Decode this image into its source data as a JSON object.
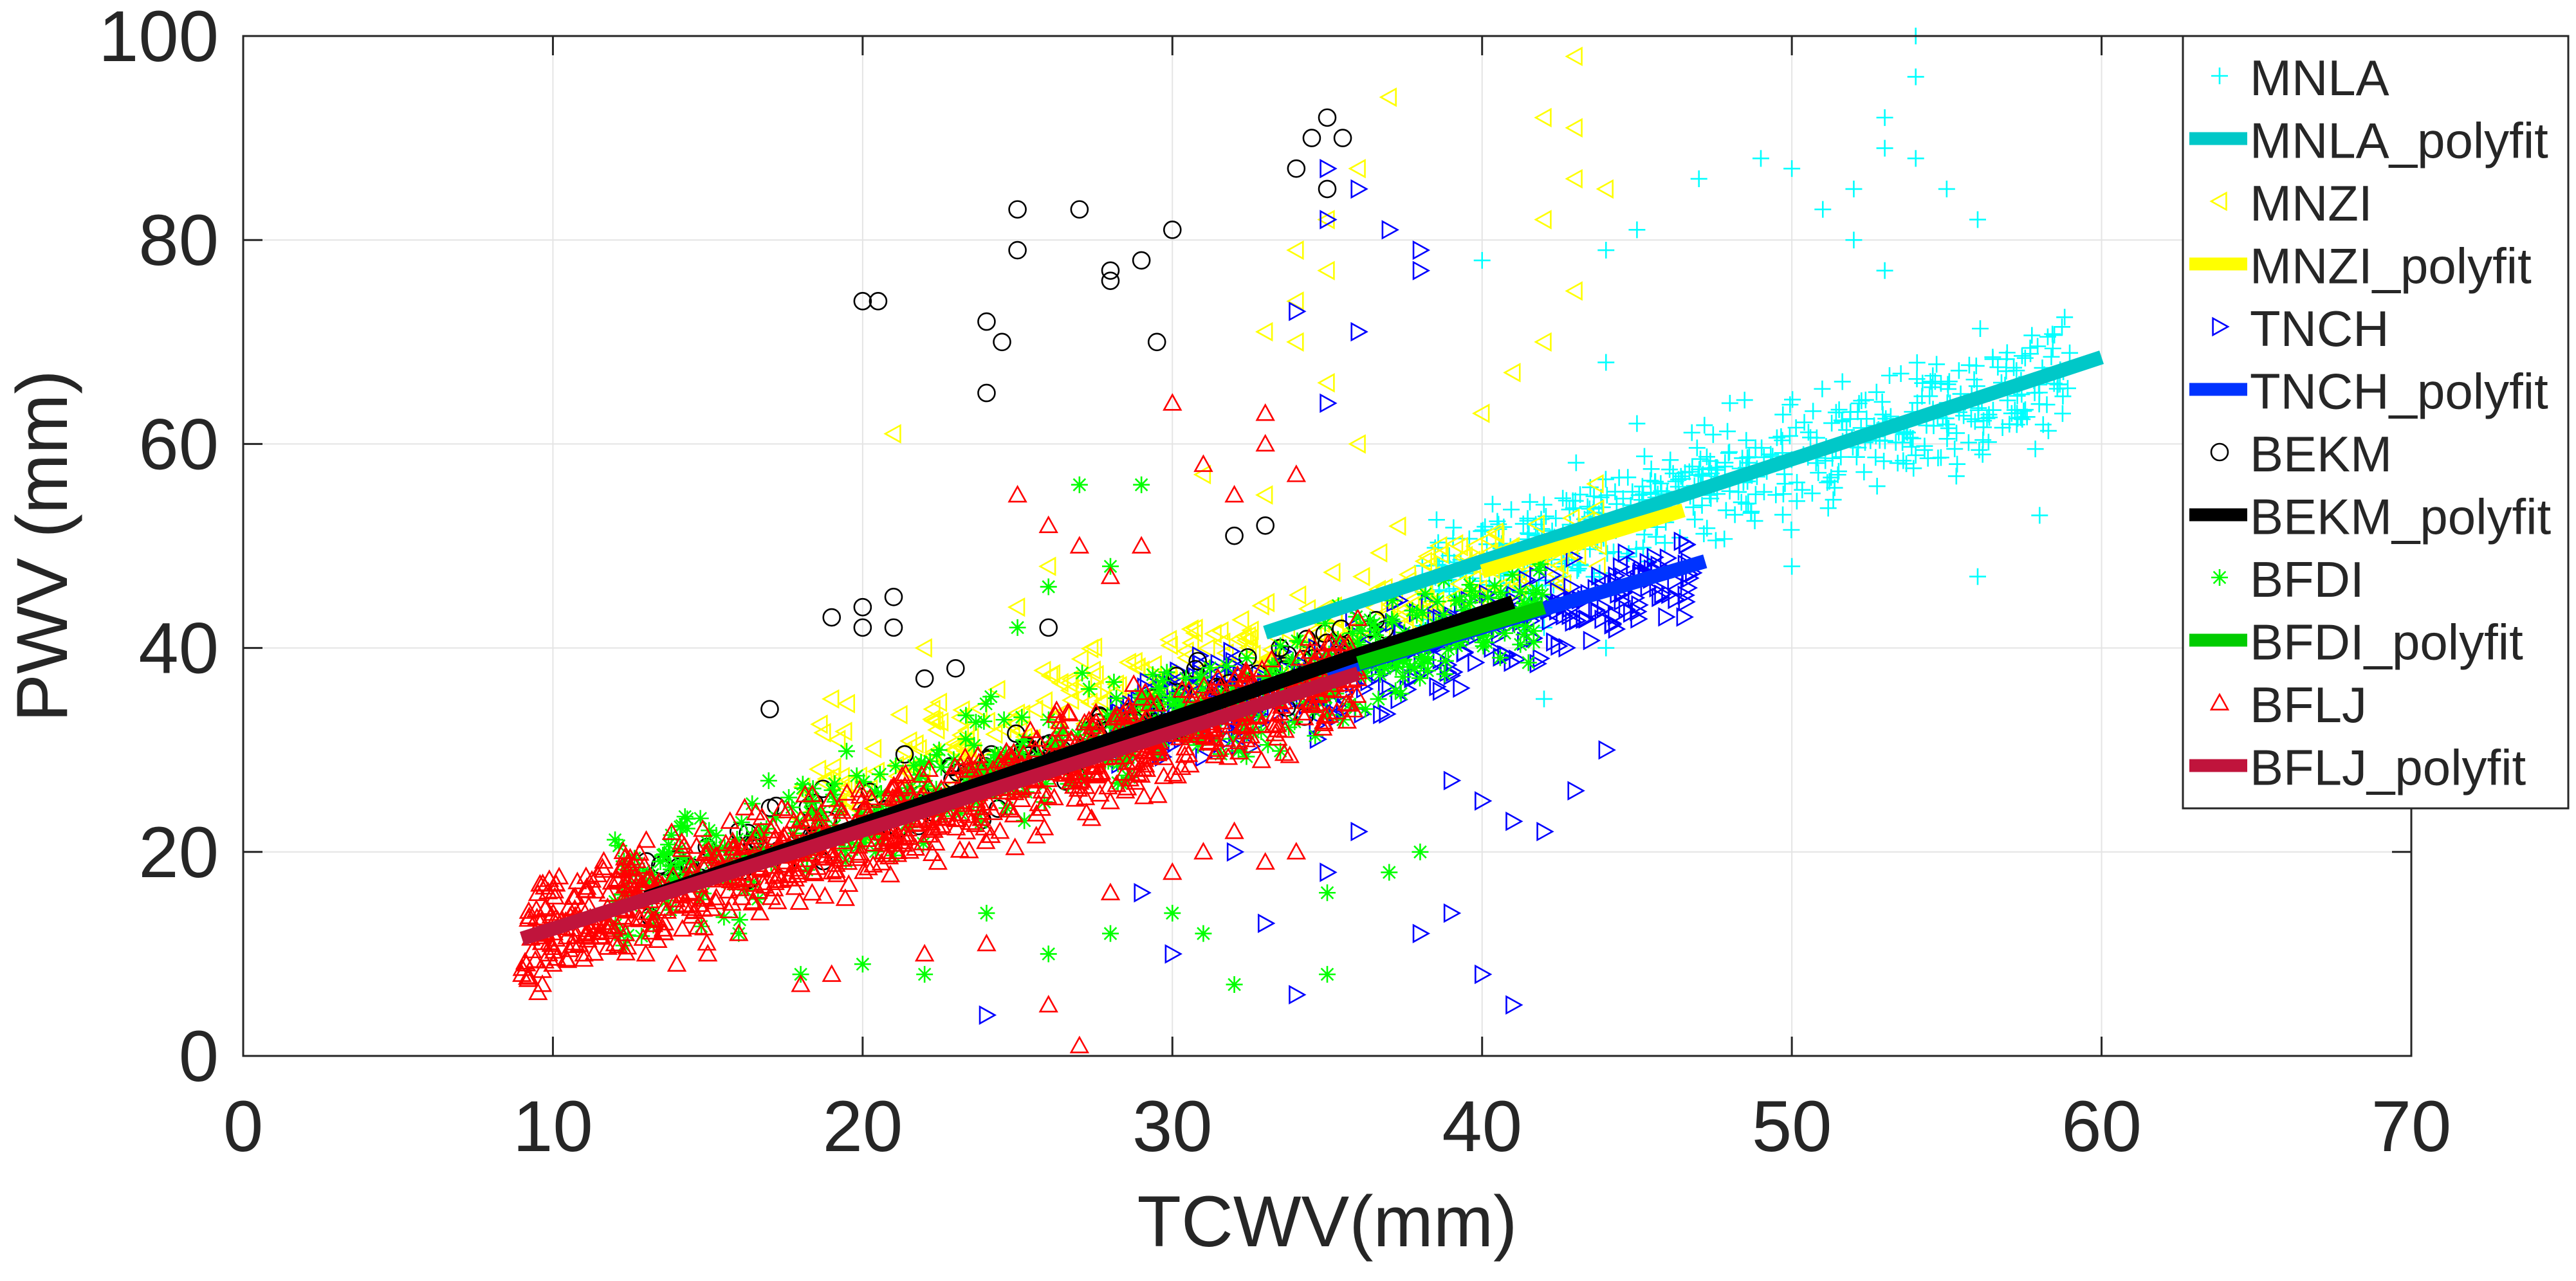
{
  "chart_data": {
    "type": "scatter",
    "title": "",
    "xlabel": "TCWV(mm)",
    "ylabel": "PWV (mm)",
    "xlim": [
      0,
      70
    ],
    "ylim": [
      0,
      100
    ],
    "xticks": [
      0,
      10,
      20,
      30,
      40,
      50,
      60,
      70
    ],
    "yticks": [
      0,
      20,
      40,
      60,
      80,
      100
    ],
    "grid": true,
    "legend_position": "top-right",
    "series": [
      {
        "name": "MNLA",
        "marker": "+",
        "color": "#00FFFF",
        "cluster": {
          "x_range": [
            38,
            59
          ],
          "slope": 0.99,
          "intercept": 8.8,
          "spread": 4.0,
          "count": 520
        },
        "points": [
          [
            40,
            78
          ],
          [
            44,
            79
          ],
          [
            44,
            68
          ],
          [
            45,
            81
          ],
          [
            47,
            86
          ],
          [
            49,
            88
          ],
          [
            50,
            87
          ],
          [
            51,
            83
          ],
          [
            52,
            85
          ],
          [
            52,
            80
          ],
          [
            53,
            92
          ],
          [
            53,
            89
          ],
          [
            54,
            96
          ],
          [
            54,
            100
          ],
          [
            54,
            88
          ],
          [
            53,
            77
          ],
          [
            55,
            85
          ],
          [
            56,
            82
          ],
          [
            48,
            64
          ],
          [
            45,
            62
          ],
          [
            58,
            53
          ],
          [
            56,
            47
          ],
          [
            42,
            42
          ],
          [
            44,
            40
          ],
          [
            42,
            35
          ],
          [
            50,
            48
          ]
        ]
      },
      {
        "name": "MNLA_polyfit",
        "type": "line",
        "color": "#00C8C8",
        "x": [
          33,
          60
        ],
        "y": [
          41.5,
          68.5
        ]
      },
      {
        "name": "MNZI",
        "marker": "triangle-left",
        "color": "#FFFF00",
        "cluster": {
          "x_range": [
            18,
            44
          ],
          "slope": 0.96,
          "intercept": 8.5,
          "spread": 3.6,
          "count": 340
        },
        "points": [
          [
            21,
            61
          ],
          [
            31,
            57
          ],
          [
            33,
            71
          ],
          [
            34,
            74
          ],
          [
            34,
            79
          ],
          [
            35,
            82
          ],
          [
            35,
            77
          ],
          [
            36,
            87
          ],
          [
            37,
            94
          ],
          [
            42,
            82
          ],
          [
            42,
            92
          ],
          [
            43,
            86
          ],
          [
            43,
            98
          ],
          [
            43,
            91
          ],
          [
            44,
            85
          ],
          [
            43,
            75
          ],
          [
            42,
            70
          ],
          [
            41,
            67
          ],
          [
            40,
            63
          ],
          [
            35,
            66
          ],
          [
            34,
            70
          ],
          [
            26,
            48
          ],
          [
            25,
            44
          ],
          [
            22,
            40
          ],
          [
            19,
            35
          ],
          [
            33,
            55
          ],
          [
            36,
            60
          ]
        ]
      },
      {
        "name": "MNZI_polyfit",
        "type": "line",
        "color": "#FFFF00",
        "x": [
          40,
          46.5
        ],
        "y": [
          47.5,
          53.5
        ]
      },
      {
        "name": "TNCH",
        "marker": "triangle-right",
        "color": "#0000FF",
        "cluster": {
          "x_range": [
            28,
            47
          ],
          "slope": 0.85,
          "intercept": 7.5,
          "spread": 3.4,
          "count": 360
        },
        "points": [
          [
            35,
            87
          ],
          [
            35,
            82
          ],
          [
            36,
            85
          ],
          [
            37,
            81
          ],
          [
            38,
            79
          ],
          [
            38,
            77
          ],
          [
            34,
            73
          ],
          [
            36,
            71
          ],
          [
            35,
            64
          ],
          [
            37,
            36
          ],
          [
            39,
            27
          ],
          [
            40,
            25
          ],
          [
            41,
            23
          ],
          [
            42,
            22
          ],
          [
            39,
            14
          ],
          [
            38,
            12
          ],
          [
            40,
            8
          ],
          [
            41,
            5
          ],
          [
            34,
            6
          ],
          [
            33,
            13
          ],
          [
            35,
            18
          ],
          [
            36,
            22
          ],
          [
            24,
            4
          ],
          [
            30,
            10
          ],
          [
            32,
            20
          ],
          [
            29,
            16
          ],
          [
            43,
            26
          ],
          [
            44,
            30
          ]
        ]
      },
      {
        "name": "TNCH_polyfit",
        "type": "line",
        "color": "#0033FF",
        "x": [
          35,
          47.2
        ],
        "y": [
          37.5,
          48.5
        ]
      },
      {
        "name": "BEKM",
        "marker": "circle",
        "color": "#000000",
        "cluster": {
          "x_range": [
            13,
            37
          ],
          "slope": 1.0,
          "intercept": 4.0,
          "spread": 3.0,
          "count": 150
        },
        "points": [
          [
            20,
            74
          ],
          [
            20.5,
            74
          ],
          [
            24,
            72
          ],
          [
            24.5,
            70
          ],
          [
            24,
            65
          ],
          [
            25,
            79
          ],
          [
            25,
            83
          ],
          [
            27,
            83
          ],
          [
            28,
            77
          ],
          [
            28,
            76
          ],
          [
            29,
            78
          ],
          [
            30,
            81
          ],
          [
            29.5,
            70
          ],
          [
            34,
            87
          ],
          [
            35,
            92
          ],
          [
            35.5,
            90
          ],
          [
            34.5,
            90
          ],
          [
            35,
            85
          ],
          [
            32,
            51
          ],
          [
            33,
            52
          ],
          [
            19,
            43
          ],
          [
            20,
            42
          ],
          [
            21,
            42
          ],
          [
            20,
            44
          ],
          [
            21,
            45
          ],
          [
            17,
            34
          ],
          [
            16,
            22
          ],
          [
            14,
            18
          ],
          [
            13,
            16
          ],
          [
            22,
            37
          ],
          [
            23,
            38
          ],
          [
            26,
            42
          ]
        ]
      },
      {
        "name": "BEKM_polyfit",
        "type": "line",
        "color": "#000000",
        "x": [
          13,
          41
        ],
        "y": [
          15.5,
          44.5
        ]
      },
      {
        "name": "BFDI",
        "marker": "asterisk",
        "color": "#00FF00",
        "cluster": {
          "x_range": [
            12,
            42
          ],
          "slope": 0.92,
          "intercept": 5.5,
          "spread": 3.8,
          "count": 560
        },
        "points": [
          [
            27,
            56
          ],
          [
            29,
            56
          ],
          [
            28,
            48
          ],
          [
            26,
            46
          ],
          [
            25,
            42
          ],
          [
            22,
            8
          ],
          [
            26,
            10
          ],
          [
            28,
            12
          ],
          [
            30,
            14
          ],
          [
            32,
            7
          ],
          [
            35,
            8
          ],
          [
            35,
            16
          ],
          [
            37,
            18
          ],
          [
            18,
            8
          ],
          [
            16,
            12
          ],
          [
            20,
            9
          ],
          [
            24,
            14
          ],
          [
            31,
            12
          ],
          [
            38,
            20
          ]
        ]
      },
      {
        "name": "BFDI_polyfit",
        "type": "line",
        "color": "#00CC00",
        "x": [
          36,
          42
        ],
        "y": [
          38.5,
          44
        ]
      },
      {
        "name": "BFLJ",
        "marker": "triangle-up",
        "color": "#FF0000",
        "cluster": {
          "x_range": [
            9,
            36
          ],
          "slope": 0.96,
          "intercept": 3.0,
          "spread": 3.6,
          "count": 900
        },
        "points": [
          [
            9,
            8
          ],
          [
            9.2,
            7.5
          ],
          [
            10,
            9
          ],
          [
            11,
            10
          ],
          [
            12,
            11
          ],
          [
            13,
            10
          ],
          [
            14,
            9
          ],
          [
            15,
            10
          ],
          [
            16,
            12
          ],
          [
            18,
            7
          ],
          [
            19,
            8
          ],
          [
            22,
            10
          ],
          [
            24,
            11
          ],
          [
            26,
            5
          ],
          [
            27,
            1
          ],
          [
            28,
            16
          ],
          [
            30,
            18
          ],
          [
            31,
            20
          ],
          [
            32,
            22
          ],
          [
            33,
            19
          ],
          [
            34,
            20
          ],
          [
            25,
            55
          ],
          [
            26,
            52
          ],
          [
            27,
            50
          ],
          [
            28,
            47
          ],
          [
            29,
            50
          ],
          [
            30,
            64
          ],
          [
            31,
            58
          ],
          [
            33,
            63
          ],
          [
            33,
            60
          ],
          [
            32,
            55
          ],
          [
            34,
            57
          ]
        ]
      },
      {
        "name": "BFLJ_polyfit",
        "type": "line",
        "color": "#C0143C",
        "x": [
          9,
          36
        ],
        "y": [
          11.5,
          37.5
        ]
      }
    ]
  }
}
